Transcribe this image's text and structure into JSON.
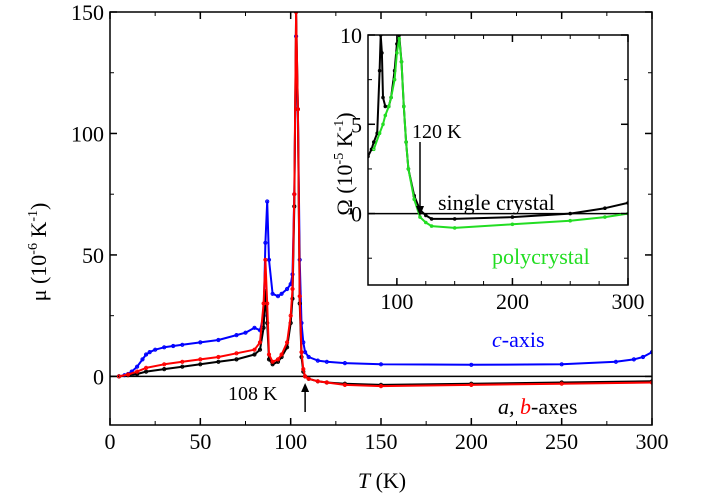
{
  "chart_data": [
    {
      "type": "line",
      "xlabel": "T",
      "xlabel_unit": " (K)",
      "ylabel": "μ (10",
      "ylabel_exp": "-6",
      "ylabel_unit": " K",
      "ylabel_exp2": "-1",
      "ylabel_close": ")",
      "xlim": [
        0,
        300
      ],
      "ylim": [
        -20,
        150
      ],
      "xticks": [
        "0",
        "50",
        "100",
        "150",
        "200",
        "250",
        "300"
      ],
      "yticks": [
        "0",
        "50",
        "100",
        "150"
      ],
      "annotations": {
        "c_axis_italic": "c",
        "c_axis_rest": "-axis",
        "ab_a": "a,",
        "ab_b": "b",
        "ab_rest": "-axes",
        "arrow_label": "108 K"
      },
      "series": [
        {
          "key": "c",
          "color": "#0000ff",
          "x": [
            5,
            8,
            10,
            12,
            15,
            18,
            20,
            22,
            25,
            30,
            35,
            40,
            50,
            60,
            70,
            75,
            80,
            83,
            85,
            86,
            87,
            88,
            90,
            93,
            95,
            98,
            100,
            101,
            102,
            103,
            104,
            105,
            106,
            107,
            108,
            110,
            115,
            120,
            130,
            150,
            200,
            250,
            280,
            290,
            295,
            300
          ],
          "y": [
            0,
            0.5,
            1,
            2,
            4,
            7,
            9,
            10,
            11,
            12,
            12.5,
            13,
            14,
            15,
            17,
            18,
            20,
            19,
            25,
            55,
            72,
            48,
            34,
            33,
            34,
            36,
            38,
            42,
            75,
            140,
            110,
            48,
            22,
            14,
            10,
            8,
            6.5,
            6,
            5.5,
            5,
            4.8,
            5,
            6,
            7,
            8,
            10
          ]
        },
        {
          "key": "a",
          "color": "#000000",
          "x": [
            5,
            10,
            15,
            20,
            30,
            40,
            50,
            60,
            70,
            80,
            83,
            85,
            86,
            87,
            88,
            90,
            93,
            95,
            98,
            100,
            101,
            102,
            103,
            104,
            105,
            106,
            107,
            108,
            110,
            115,
            120,
            130,
            150,
            200,
            250,
            300
          ],
          "y": [
            0,
            0.5,
            1,
            2,
            3,
            4,
            5,
            6,
            7,
            9,
            11,
            20,
            35,
            22,
            7,
            5,
            6,
            8,
            12,
            22,
            32,
            70,
            150,
            110,
            30,
            8,
            2,
            0,
            -1,
            -2,
            -2.5,
            -3,
            -3.5,
            -3,
            -2.5,
            -2
          ]
        },
        {
          "key": "b",
          "color": "#ff0000",
          "x": [
            5,
            10,
            15,
            20,
            30,
            40,
            50,
            60,
            70,
            80,
            83,
            85,
            86,
            87,
            88,
            90,
            93,
            95,
            98,
            100,
            101,
            102,
            103,
            104,
            105,
            106,
            107,
            108,
            110,
            115,
            120,
            130,
            150,
            200,
            250,
            300
          ],
          "y": [
            0,
            0.8,
            2,
            3.5,
            5,
            6,
            7,
            8,
            9.5,
            11,
            14,
            30,
            48,
            30,
            9,
            6,
            7,
            9,
            14,
            25,
            36,
            75,
            150,
            110,
            33,
            10,
            3,
            0,
            -1,
            -2,
            -2.5,
            -3.5,
            -4,
            -3.5,
            -3,
            -2.5
          ]
        }
      ]
    },
    {
      "type": "line",
      "xlabel": "",
      "ylabel": "Ω (10",
      "ylabel_exp": "-5",
      "ylabel_unit": " K",
      "ylabel_exp2": "-1",
      "ylabel_close": ")",
      "xlim": [
        75,
        300
      ],
      "ylim": [
        -4,
        10
      ],
      "xticks": [
        "100",
        "200",
        "300"
      ],
      "yticks": [
        "0",
        "5",
        "10"
      ],
      "annotations": {
        "arrow_label": "120 K",
        "single_crystal": "single crystal",
        "polycrystal": "polycrystal"
      },
      "series": [
        {
          "key": "single",
          "color": "#000000",
          "x": [
            75,
            78,
            80,
            83,
            85,
            86,
            87,
            88,
            90,
            93,
            95,
            98,
            100,
            102,
            104,
            106,
            108,
            110,
            115,
            120,
            125,
            130,
            150,
            200,
            250,
            280,
            300
          ],
          "y": [
            3.2,
            3.6,
            4,
            4.5,
            8,
            10,
            9,
            6.5,
            6,
            6,
            6.5,
            8,
            9.5,
            10,
            8.5,
            6,
            4,
            2.5,
            1,
            0.2,
            -0.1,
            -0.3,
            -0.3,
            -0.2,
            0,
            0.3,
            0.6
          ]
        },
        {
          "key": "poly",
          "color": "#22dd22",
          "x": [
            80,
            85,
            88,
            90,
            93,
            95,
            98,
            100,
            102,
            104,
            106,
            108,
            110,
            115,
            120,
            125,
            130,
            150,
            200,
            250,
            280,
            300
          ],
          "y": [
            3.6,
            4.5,
            5,
            5.5,
            6,
            6.5,
            7.5,
            9,
            9.8,
            8.5,
            6,
            4,
            2.5,
            0.8,
            -0.2,
            -0.5,
            -0.7,
            -0.8,
            -0.6,
            -0.4,
            -0.2,
            0
          ]
        }
      ]
    }
  ]
}
